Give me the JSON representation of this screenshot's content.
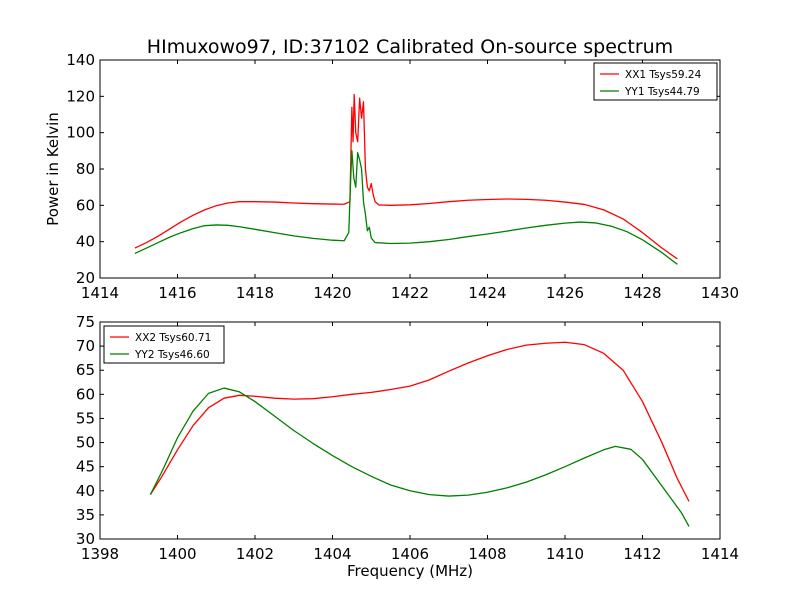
{
  "title": "HImuxowo97, ID:37102 Calibrated On-source spectrum",
  "chart_data": [
    {
      "type": "line",
      "ylabel": "Power in Kelvin",
      "xlabel": "",
      "xlim": [
        1414,
        1430
      ],
      "ylim": [
        20,
        140
      ],
      "xticks": [
        1414,
        1416,
        1418,
        1420,
        1422,
        1424,
        1426,
        1428,
        1430
      ],
      "yticks": [
        20,
        40,
        60,
        80,
        100,
        120,
        140
      ],
      "legend_position": "top-right",
      "series": [
        {
          "name": "XX1 Tsys59.24",
          "color": "#ff0000",
          "points": [
            [
              1414.9,
              36.5
            ],
            [
              1415.2,
              39.5
            ],
            [
              1415.5,
              43
            ],
            [
              1415.8,
              47
            ],
            [
              1416.1,
              51
            ],
            [
              1416.4,
              54.5
            ],
            [
              1416.7,
              57.5
            ],
            [
              1417.0,
              59.8
            ],
            [
              1417.3,
              61.3
            ],
            [
              1417.6,
              62.0
            ],
            [
              1418.0,
              62.0
            ],
            [
              1418.5,
              61.8
            ],
            [
              1419.0,
              61.3
            ],
            [
              1419.5,
              60.9
            ],
            [
              1420.0,
              60.7
            ],
            [
              1420.3,
              60.6
            ],
            [
              1420.45,
              62
            ],
            [
              1420.5,
              114
            ],
            [
              1420.53,
              95
            ],
            [
              1420.56,
              121
            ],
            [
              1420.6,
              100
            ],
            [
              1420.65,
              95
            ],
            [
              1420.7,
              119
            ],
            [
              1420.75,
              108
            ],
            [
              1420.8,
              117
            ],
            [
              1420.85,
              80
            ],
            [
              1420.9,
              70
            ],
            [
              1420.95,
              68
            ],
            [
              1421.0,
              72
            ],
            [
              1421.05,
              66
            ],
            [
              1421.1,
              62
            ],
            [
              1421.2,
              60.2
            ],
            [
              1421.5,
              60.0
            ],
            [
              1422.0,
              60.3
            ],
            [
              1422.5,
              61.0
            ],
            [
              1423.0,
              62.0
            ],
            [
              1423.5,
              62.8
            ],
            [
              1424.0,
              63.2
            ],
            [
              1424.5,
              63.5
            ],
            [
              1425.0,
              63.3
            ],
            [
              1425.5,
              62.8
            ],
            [
              1426.0,
              61.8
            ],
            [
              1426.5,
              60.5
            ],
            [
              1427.0,
              57.5
            ],
            [
              1427.5,
              52.5
            ],
            [
              1428.0,
              45
            ],
            [
              1428.5,
              36.5
            ],
            [
              1428.9,
              30.5
            ]
          ]
        },
        {
          "name": "YY1 Tsys44.79",
          "color": "#008000",
          "points": [
            [
              1414.9,
              33.5
            ],
            [
              1415.2,
              36.5
            ],
            [
              1415.5,
              39.5
            ],
            [
              1415.8,
              42.5
            ],
            [
              1416.1,
              45
            ],
            [
              1416.4,
              47.2
            ],
            [
              1416.7,
              48.8
            ],
            [
              1417.0,
              49.2
            ],
            [
              1417.3,
              49.0
            ],
            [
              1417.6,
              48.2
            ],
            [
              1418.0,
              46.8
            ],
            [
              1418.5,
              45.0
            ],
            [
              1419.0,
              43.2
            ],
            [
              1419.5,
              41.8
            ],
            [
              1420.0,
              40.8
            ],
            [
              1420.3,
              40.5
            ],
            [
              1420.42,
              45
            ],
            [
              1420.47,
              75
            ],
            [
              1420.5,
              90
            ],
            [
              1420.55,
              75
            ],
            [
              1420.6,
              70
            ],
            [
              1420.65,
              89
            ],
            [
              1420.7,
              85
            ],
            [
              1420.75,
              80
            ],
            [
              1420.8,
              62
            ],
            [
              1420.85,
              55
            ],
            [
              1420.9,
              46
            ],
            [
              1420.95,
              48
            ],
            [
              1421.0,
              42
            ],
            [
              1421.1,
              39.5
            ],
            [
              1421.5,
              39.0
            ],
            [
              1422.0,
              39.2
            ],
            [
              1422.5,
              40.0
            ],
            [
              1423.0,
              41.2
            ],
            [
              1423.5,
              42.8
            ],
            [
              1424.0,
              44.2
            ],
            [
              1424.5,
              45.8
            ],
            [
              1425.0,
              47.5
            ],
            [
              1425.5,
              49.0
            ],
            [
              1426.0,
              50.2
            ],
            [
              1426.4,
              50.8
            ],
            [
              1426.8,
              50.3
            ],
            [
              1427.2,
              48.5
            ],
            [
              1427.6,
              45.5
            ],
            [
              1428.0,
              41.0
            ],
            [
              1428.5,
              34.0
            ],
            [
              1428.9,
              27.5
            ]
          ]
        }
      ]
    },
    {
      "type": "line",
      "xlabel": "Frequency (MHz)",
      "ylabel": "",
      "xlim": [
        1398,
        1414
      ],
      "ylim": [
        30,
        75
      ],
      "xticks": [
        1398,
        1400,
        1402,
        1404,
        1406,
        1408,
        1410,
        1412,
        1414
      ],
      "yticks": [
        30,
        35,
        40,
        45,
        50,
        55,
        60,
        65,
        70,
        75
      ],
      "legend_position": "top-left",
      "series": [
        {
          "name": "XX2 Tsys60.71",
          "color": "#ff0000",
          "points": [
            [
              1399.3,
              39.2
            ],
            [
              1399.6,
              43
            ],
            [
              1400.0,
              48.5
            ],
            [
              1400.4,
              53.5
            ],
            [
              1400.8,
              57.2
            ],
            [
              1401.2,
              59.2
            ],
            [
              1401.6,
              59.8
            ],
            [
              1402.0,
              59.6
            ],
            [
              1402.5,
              59.2
            ],
            [
              1403.0,
              59.0
            ],
            [
              1403.5,
              59.1
            ],
            [
              1404.0,
              59.5
            ],
            [
              1404.5,
              60.0
            ],
            [
              1405.0,
              60.4
            ],
            [
              1405.5,
              61.0
            ],
            [
              1406.0,
              61.7
            ],
            [
              1406.5,
              63.0
            ],
            [
              1407.0,
              64.8
            ],
            [
              1407.5,
              66.5
            ],
            [
              1408.0,
              68.0
            ],
            [
              1408.5,
              69.3
            ],
            [
              1409.0,
              70.2
            ],
            [
              1409.5,
              70.6
            ],
            [
              1410.0,
              70.8
            ],
            [
              1410.5,
              70.3
            ],
            [
              1411.0,
              68.5
            ],
            [
              1411.5,
              65.0
            ],
            [
              1412.0,
              58.5
            ],
            [
              1412.5,
              50.0
            ],
            [
              1412.9,
              42.5
            ],
            [
              1413.2,
              37.8
            ]
          ]
        },
        {
          "name": "YY2 Tsys46.60",
          "color": "#008000",
          "points": [
            [
              1399.3,
              39.2
            ],
            [
              1399.6,
              44
            ],
            [
              1400.0,
              51
            ],
            [
              1400.4,
              56.5
            ],
            [
              1400.8,
              60.2
            ],
            [
              1401.2,
              61.3
            ],
            [
              1401.6,
              60.5
            ],
            [
              1402.0,
              58.5
            ],
            [
              1402.5,
              55.5
            ],
            [
              1403.0,
              52.5
            ],
            [
              1403.5,
              49.8
            ],
            [
              1404.0,
              47.3
            ],
            [
              1404.5,
              45.0
            ],
            [
              1405.0,
              43.0
            ],
            [
              1405.5,
              41.2
            ],
            [
              1406.0,
              40.0
            ],
            [
              1406.5,
              39.2
            ],
            [
              1407.0,
              38.9
            ],
            [
              1407.5,
              39.1
            ],
            [
              1408.0,
              39.7
            ],
            [
              1408.5,
              40.6
            ],
            [
              1409.0,
              41.8
            ],
            [
              1409.5,
              43.3
            ],
            [
              1410.0,
              45.0
            ],
            [
              1410.5,
              46.8
            ],
            [
              1411.0,
              48.5
            ],
            [
              1411.3,
              49.2
            ],
            [
              1411.7,
              48.6
            ],
            [
              1412.0,
              46.5
            ],
            [
              1412.5,
              41.0
            ],
            [
              1413.0,
              35.5
            ],
            [
              1413.2,
              32.6
            ]
          ]
        }
      ]
    }
  ]
}
